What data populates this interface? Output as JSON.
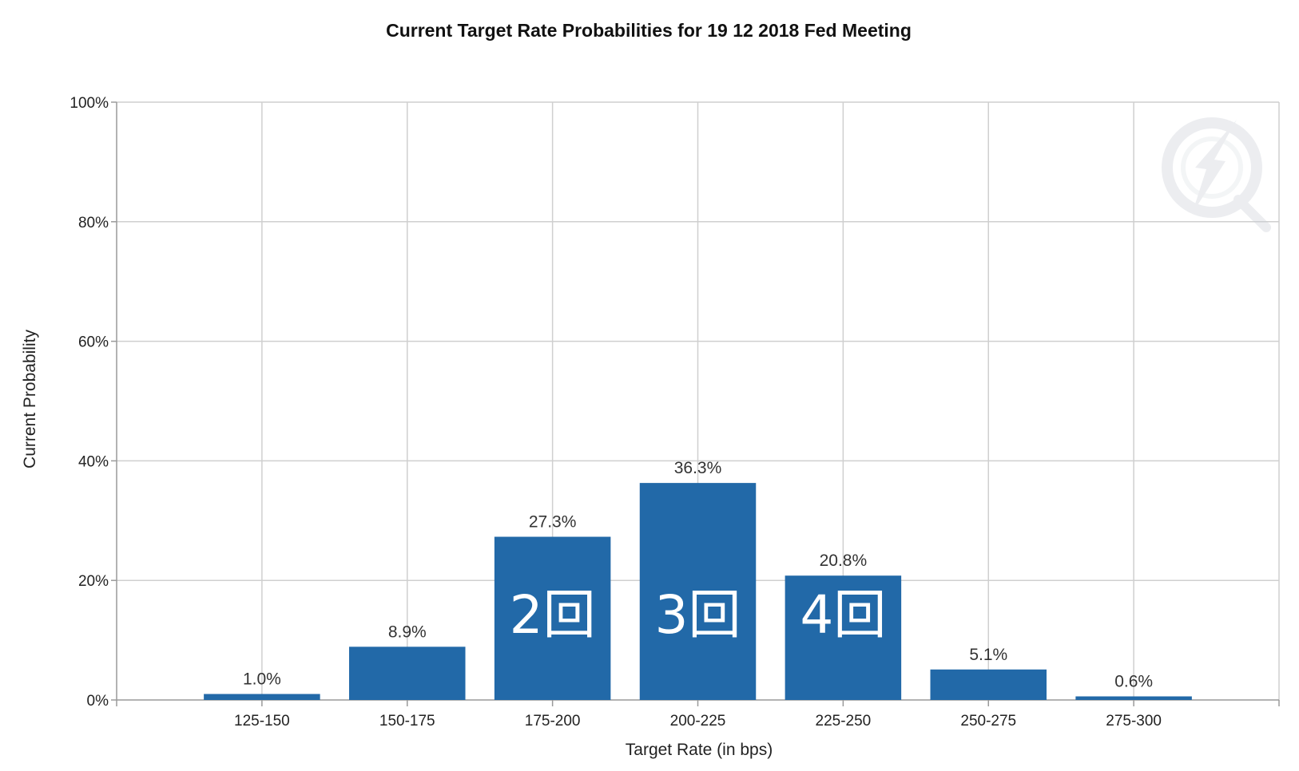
{
  "chart_data": {
    "type": "bar",
    "title": "Current Target Rate Probabilities for 19 12 2018 Fed Meeting",
    "xlabel": "Target Rate (in bps)",
    "ylabel": "Current Probability",
    "ylim": [
      0,
      100
    ],
    "y_ticks": [
      "0%",
      "20%",
      "40%",
      "60%",
      "80%",
      "100%"
    ],
    "grid": true,
    "categories": [
      "125-150",
      "150-175",
      "175-200",
      "200-225",
      "225-250",
      "250-275",
      "275-300"
    ],
    "values": [
      1.0,
      8.9,
      27.3,
      36.3,
      20.8,
      5.1,
      0.6
    ],
    "data_labels": [
      "1.0%",
      "8.9%",
      "27.3%",
      "36.3%",
      "20.8%",
      "5.1%",
      "0.6%"
    ],
    "bar_color": "#2269a8",
    "annotations": [
      {
        "category": "175-200",
        "text": "2回"
      },
      {
        "category": "200-225",
        "text": "3回"
      },
      {
        "category": "225-250",
        "text": "4回"
      }
    ]
  }
}
